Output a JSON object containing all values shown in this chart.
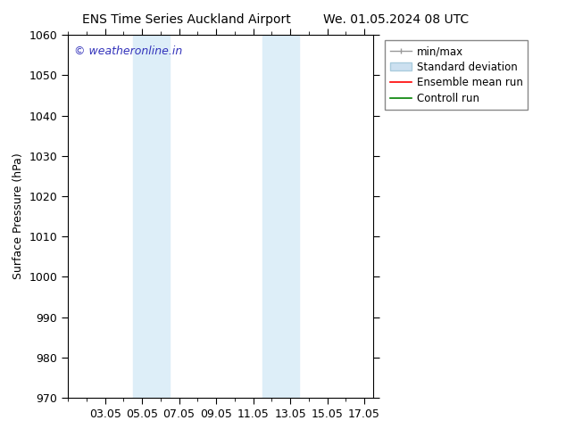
{
  "title_left": "ENS Time Series Auckland Airport",
  "title_right": "We. 01.05.2024 08 UTC",
  "ylabel": "Surface Pressure (hPa)",
  "ylim": [
    970,
    1060
  ],
  "yticks": [
    970,
    980,
    990,
    1000,
    1010,
    1020,
    1030,
    1040,
    1050,
    1060
  ],
  "xtick_labels": [
    "03.05",
    "05.05",
    "07.05",
    "09.05",
    "11.05",
    "13.05",
    "15.05",
    "17.05"
  ],
  "xtick_positions": [
    2,
    4,
    6,
    8,
    10,
    12,
    14,
    16
  ],
  "xlim": [
    0,
    16.5
  ],
  "shaded_bands": [
    {
      "x_start": 3.5,
      "x_end": 5.5,
      "color": "#ddeef8"
    },
    {
      "x_start": 10.5,
      "x_end": 12.5,
      "color": "#ddeef8"
    }
  ],
  "watermark_text": "© weatheronline.in",
  "watermark_color": "#3333bb",
  "legend_items": [
    {
      "label": "min/max",
      "color": "#aaaaaa"
    },
    {
      "label": "Standard deviation",
      "color": "#cce0f0"
    },
    {
      "label": "Ensemble mean run",
      "color": "red"
    },
    {
      "label": "Controll run",
      "color": "green"
    }
  ],
  "bg_color": "#ffffff",
  "font_size": 9,
  "title_font_size": 10
}
